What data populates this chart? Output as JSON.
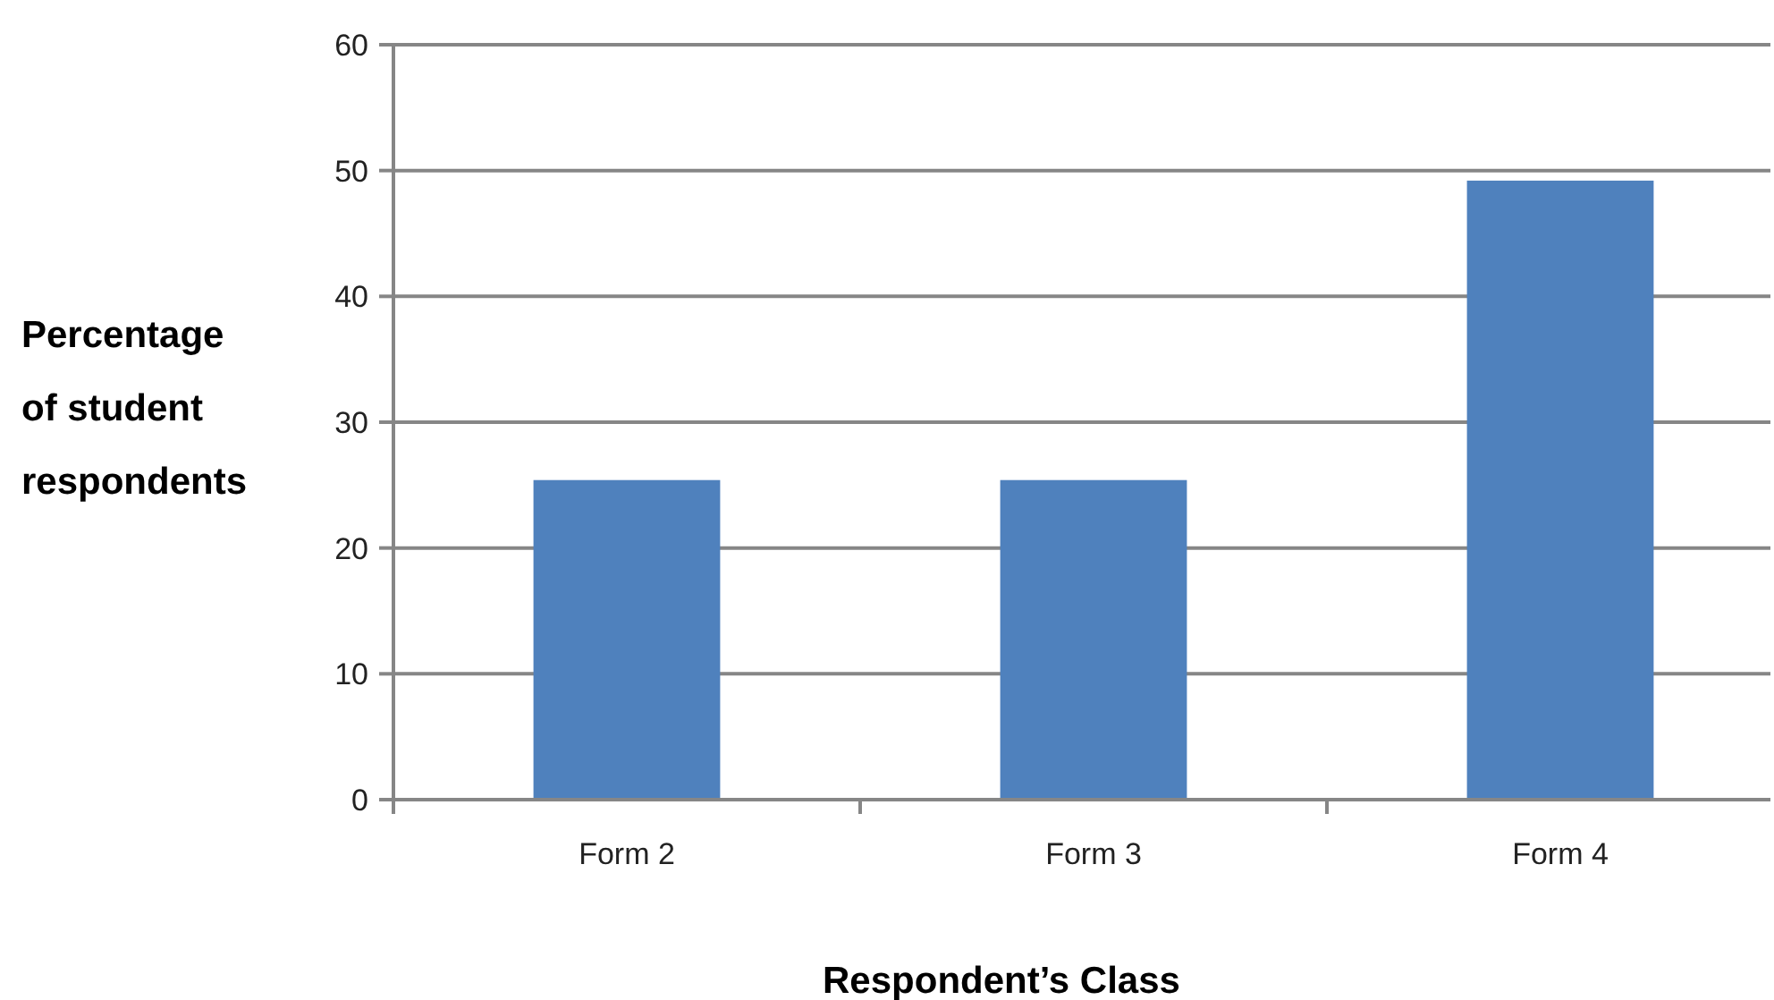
{
  "chart_data": {
    "type": "bar",
    "xlabel": "Respondent’s Class",
    "ylabel": "Percentage of student respondents",
    "categories": [
      "Form 2",
      "Form 3",
      "Form 4"
    ],
    "values": [
      25.4,
      25.4,
      49.2
    ],
    "color": "#4f81bd",
    "ylim": [
      0,
      60
    ],
    "yticks": [
      0,
      10,
      20,
      30,
      40,
      50,
      60
    ],
    "grid": "y"
  }
}
